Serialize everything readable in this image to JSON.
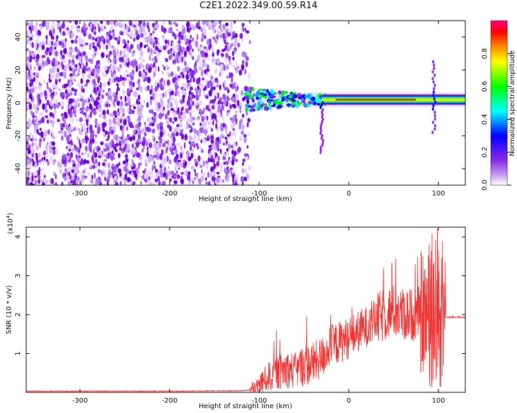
{
  "title": "C2E1.2022.349.00.59.R14",
  "chart_data": [
    {
      "type": "heatmap",
      "xlabel": "Height of straight line (km)",
      "ylabel": "Frequency (Hz)",
      "xlim": [
        -360,
        130
      ],
      "ylim": [
        -50,
        50
      ],
      "x_ticks": [
        -300,
        -200,
        -100,
        0,
        100
      ],
      "y_ticks": [
        -40,
        -20,
        0,
        20,
        40
      ],
      "colorbar": {
        "label": "Normalized spectral amplitude",
        "range": [
          0.0,
          1.0
        ],
        "ticks": [
          "0.0",
          "0.2",
          "0.4",
          "0.6",
          "0.8"
        ],
        "tick_values": [
          0.0,
          0.2,
          0.4,
          0.6,
          0.8
        ],
        "colormap": [
          "#ffffff",
          "#8a2be2",
          "#0000ff",
          "#00ffff",
          "#00ff00",
          "#ffff00",
          "#ff7f00",
          "#ff0000",
          "#ff0080"
        ]
      },
      "features": {
        "noise_region_x": [
          -360,
          -110
        ],
        "signal_band_x": [
          -115,
          130
        ],
        "signal_band_center_hz": 2,
        "spikes": [
          {
            "x": -30,
            "y_range": [
              -30,
              0
            ]
          },
          {
            "x": 95,
            "y_range": [
              -18,
              25
            ]
          }
        ]
      }
    },
    {
      "type": "line",
      "xlabel": "Height of straight line (km)",
      "ylabel": "SNR (10 * v/v)",
      "multiplier": "(x10",
      "multiplier_exp": "4",
      "xlim": [
        -360,
        130
      ],
      "ylim": [
        0,
        4.25
      ],
      "x_ticks": [
        -300,
        -200,
        -100,
        0,
        100
      ],
      "y_ticks": [
        1,
        2,
        3,
        4
      ],
      "color": "#ee3333",
      "series": [
        {
          "x": [
            -360,
            -300,
            -200,
            -120,
            -105,
            -100,
            -90,
            -80,
            -70,
            -60,
            -50,
            -40,
            -30,
            -20,
            -10,
            0,
            10,
            20,
            30,
            40,
            50,
            60,
            70,
            80,
            90,
            95,
            100,
            103,
            106,
            110,
            120,
            130
          ],
          "y": [
            0.03,
            0.03,
            0.03,
            0.04,
            0.08,
            0.2,
            0.4,
            0.5,
            0.6,
            0.55,
            0.7,
            0.75,
            0.9,
            1.2,
            1.3,
            1.4,
            1.55,
            1.7,
            1.85,
            2.0,
            2.1,
            2.0,
            2.0,
            2.05,
            2.0,
            1.9,
            2.0,
            1.95,
            1.95,
            1.93,
            1.94,
            1.92
          ]
        }
      ]
    }
  ]
}
